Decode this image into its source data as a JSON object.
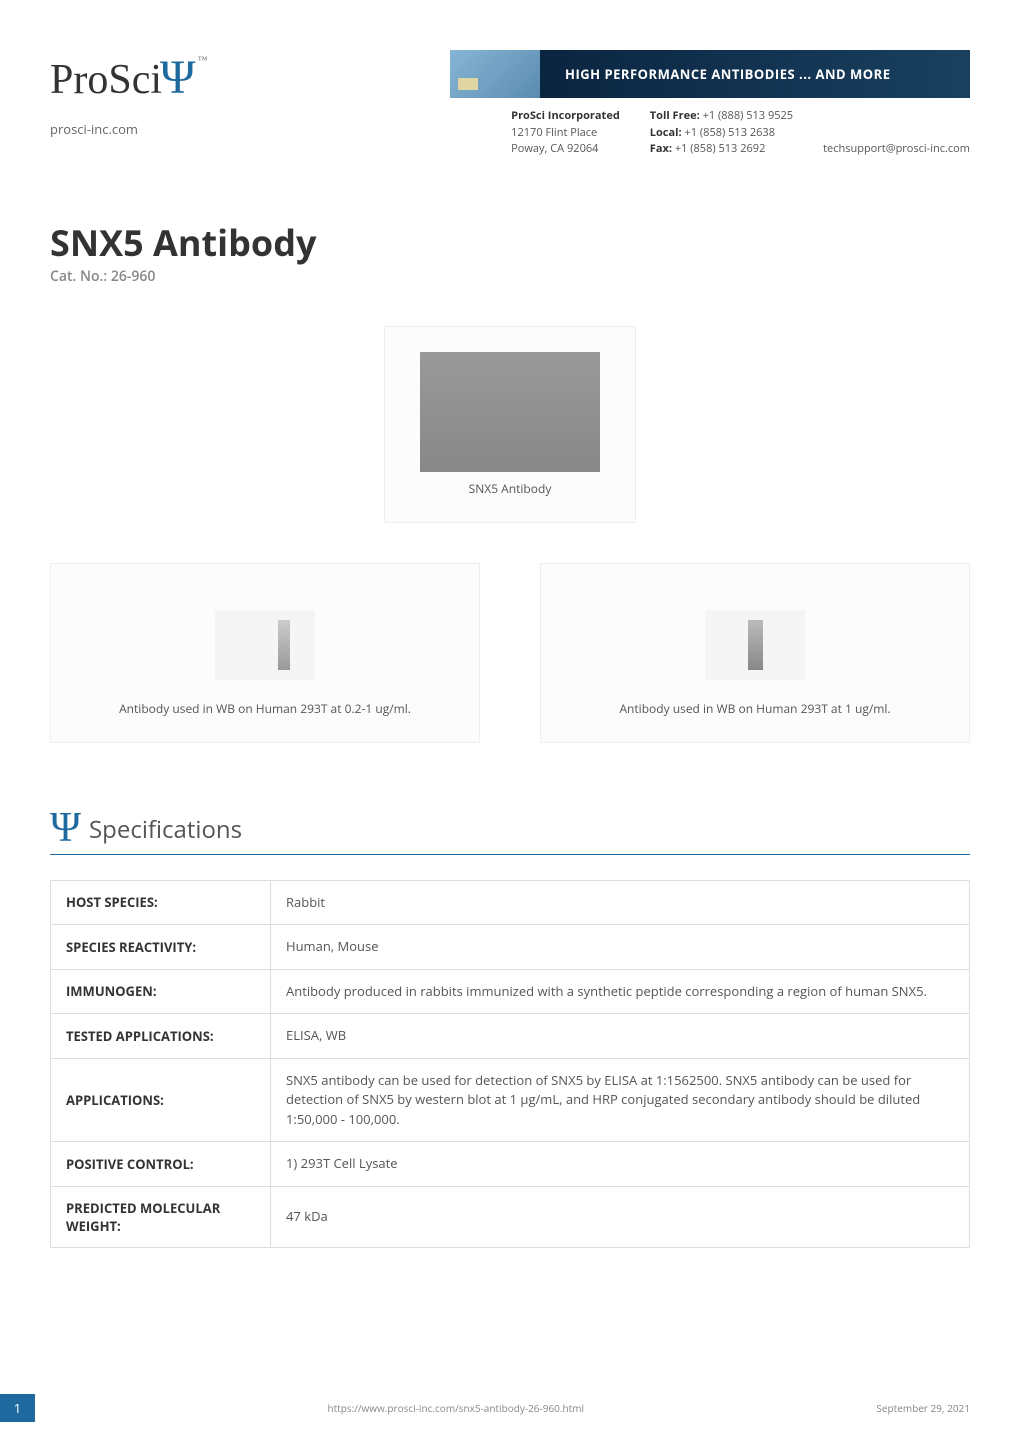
{
  "header": {
    "logo_text": "ProSci",
    "website": "prosci-inc.com",
    "banner_text": "HIGH PERFORMANCE ANTIBODIES ... AND MORE",
    "company": "ProSci Incorporated",
    "address1": "12170 Flint Place",
    "address2": "Poway, CA 92064",
    "toll_free_label": "Toll Free: ",
    "toll_free": "+1 (888) 513 9525",
    "local_label": "Local: ",
    "local": "+1 (858) 513 2638",
    "fax_label": "Fax: ",
    "fax": "+1 (858) 513 2692",
    "email": "techsupport@prosci-inc.com"
  },
  "product": {
    "title": "SNX5 Antibody",
    "cat_no": "Cat. No.: 26-960"
  },
  "images": {
    "main_caption": "SNX5 Antibody",
    "left_caption": "Antibody used in WB on Human 293T at 0.2-1 ug/ml.",
    "right_caption": "Antibody used in WB on Human 293T at 1 ug/ml."
  },
  "specifications": {
    "section_title": "Specifications",
    "rows": [
      {
        "label": "HOST SPECIES:",
        "value": "Rabbit"
      },
      {
        "label": "SPECIES REACTIVITY:",
        "value": "Human, Mouse"
      },
      {
        "label": "IMMUNOGEN:",
        "value": "Antibody produced in rabbits immunized with a synthetic peptide corresponding a region of human SNX5."
      },
      {
        "label": "TESTED APPLICATIONS:",
        "value": "ELISA, WB"
      },
      {
        "label": "APPLICATIONS:",
        "value": "SNX5 antibody can be used for detection of SNX5 by ELISA at 1:1562500. SNX5 antibody can be used for detection of SNX5 by western blot at 1 μg/mL, and HRP conjugated secondary antibody should be diluted 1:50,000 - 100,000."
      },
      {
        "label": "POSITIVE CONTROL:",
        "value": "1) 293T Cell Lysate"
      },
      {
        "label": "PREDICTED MOLECULAR WEIGHT:",
        "value": "47 kDa"
      }
    ]
  },
  "footer": {
    "page": "1",
    "url": "https://www.prosci-inc.com/snx5-antibody-26-960.html",
    "date": "September 29, 2021"
  },
  "colors": {
    "accent": "#1e6a9e",
    "text": "#333333",
    "muted": "#888888",
    "border": "#dddddd"
  }
}
